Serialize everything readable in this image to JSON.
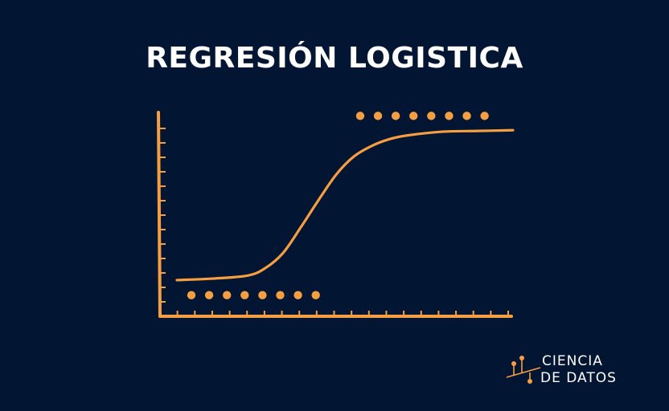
{
  "title": "REGRESIÓN LOGISTICA",
  "brand": {
    "line1": "CIENCIA",
    "line2": "DE DATOS",
    "logo_icon": "data-plot-logo-icon"
  },
  "colors": {
    "background": "#021633",
    "accent": "#F59E42",
    "text": "#FFFFFF"
  },
  "chart_data": {
    "type": "line",
    "title": "REGRESIÓN LOGISTICA",
    "xlabel": "",
    "ylabel": "",
    "xlim": [
      0,
      20
    ],
    "ylim": [
      0,
      13
    ],
    "grid": false,
    "axis_ticks": {
      "x_count": 20,
      "y_count": 13
    },
    "series": [
      {
        "kind": "points",
        "x": [
          1,
          2,
          3,
          4,
          5,
          6,
          7,
          8
        ],
        "y": [
          1.4,
          1.4,
          1.4,
          1.4,
          1.4,
          1.4,
          1.4,
          1.4
        ]
      },
      {
        "kind": "points",
        "x": [
          10.5,
          11.5,
          12.5,
          13.5,
          14.5,
          15.5,
          16.5,
          17.5
        ],
        "y": [
          13.3,
          13.3,
          13.3,
          13.3,
          13.3,
          13.3,
          13.3,
          13.3
        ]
      },
      {
        "kind": "curve",
        "x": [
          1,
          3,
          5,
          6,
          7,
          8,
          9,
          10,
          11,
          12,
          13,
          14,
          16,
          18,
          20
        ],
        "y": [
          2.4,
          2.5,
          2.7,
          3.2,
          4.2,
          5.9,
          7.7,
          9.4,
          10.6,
          11.3,
          11.75,
          12.0,
          12.25,
          12.3,
          12.35
        ]
      }
    ]
  }
}
